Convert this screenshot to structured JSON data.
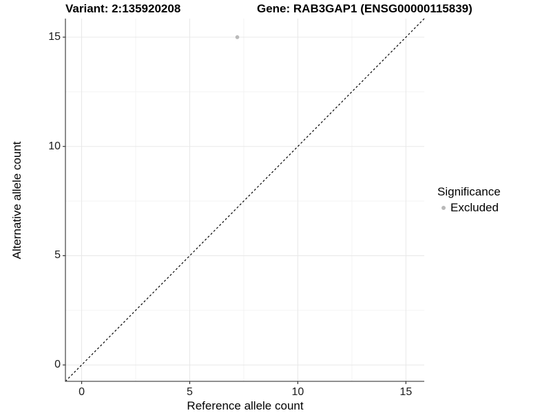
{
  "chart_data": {
    "type": "scatter",
    "title_left": "Variant: 2:135920208",
    "title_right": "Gene: RAB3GAP1 (ENSG00000115839)",
    "xlabel": "Reference allele count",
    "ylabel": "Alternative allele count",
    "xlim": [
      -0.75,
      15.85
    ],
    "ylim": [
      -0.75,
      15.85
    ],
    "xticks": [
      0,
      5,
      10,
      15
    ],
    "yticks": [
      0,
      5,
      10,
      15
    ],
    "minor_ticks": [
      2.5,
      7.5,
      12.5
    ],
    "grid": "major and minor, light grey on white",
    "points": [
      {
        "x": 7.2,
        "y": 15,
        "series": "Excluded"
      }
    ],
    "identity_line": {
      "slope": 1,
      "intercept": 0,
      "style": "dashed",
      "color": "#000000"
    },
    "legend": {
      "title": "Significance",
      "position": "right",
      "items": [
        {
          "label": "Excluded",
          "color": "#b9b9b9"
        }
      ]
    },
    "colors": {
      "point": "#b9b9b9",
      "grid_major": "#e8e8e8",
      "grid_minor": "#f3f3f3",
      "axis_line": "#4d4d4d",
      "tick_mark": "#333333",
      "background": "#ffffff"
    }
  }
}
